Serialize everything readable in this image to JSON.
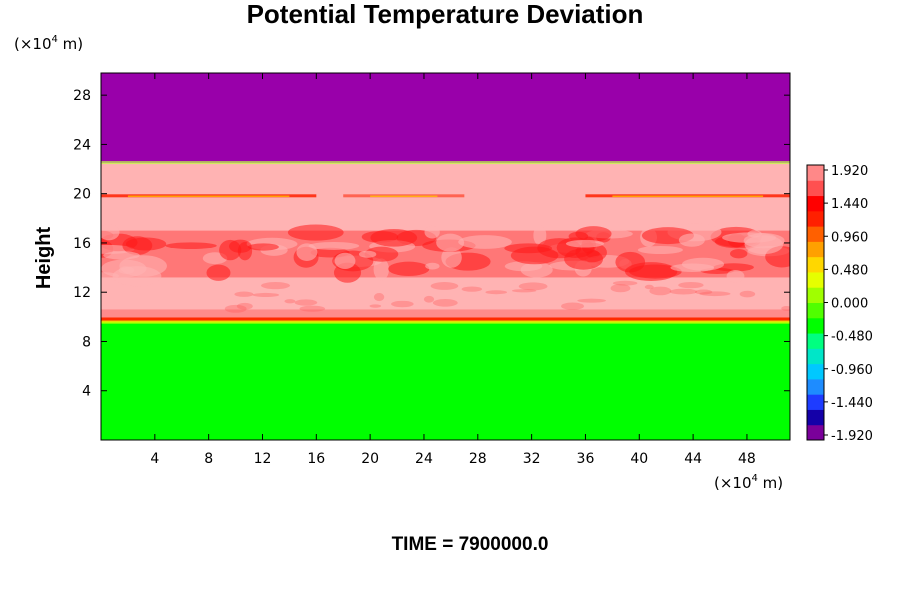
{
  "chart_data": {
    "type": "heatmap",
    "title": "Potential Temperature Deviation",
    "ylabel": "Height",
    "xlabel": "",
    "x_unit": {
      "prefix": "(×10",
      "exp": "4",
      "suffix": " m)"
    },
    "y_unit": {
      "prefix": "(×10",
      "exp": "4",
      "suffix": " m)"
    },
    "xlim": [
      0,
      51.2
    ],
    "ylim": [
      0,
      29.8
    ],
    "xticks": [
      4,
      8,
      12,
      16,
      20,
      24,
      28,
      32,
      36,
      40,
      44,
      48
    ],
    "yticks": [
      4,
      8,
      12,
      16,
      20,
      24,
      28
    ],
    "colorbar": {
      "min": -1.92,
      "max": 1.92,
      "ticks": [
        "1.920",
        "1.440",
        "0.960",
        "0.480",
        "0.000",
        "-0.480",
        "-0.960",
        "-1.440",
        "-1.920"
      ],
      "colors": [
        "#7a009a",
        "#1400a8",
        "#1e3cff",
        "#1e8cff",
        "#00c8ff",
        "#00e6c8",
        "#00ff80",
        "#00ff00",
        "#50ff00",
        "#a0ff00",
        "#e6ff00",
        "#ffd700",
        "#ffa000",
        "#ff6000",
        "#ff2000",
        "#ff0000",
        "#ff5050",
        "#ff8888"
      ]
    },
    "layers": [
      {
        "y0": 0,
        "y1": 9.6,
        "value": 0.0,
        "color": "#00ff00"
      },
      {
        "y0": 9.6,
        "y1": 22.5,
        "value": 1.9,
        "color": "#ffb3b3"
      },
      {
        "y0": 22.5,
        "y1": 29.8,
        "value": -1.92,
        "color": "#9900aa"
      }
    ],
    "time_label": "TIME = 7900000.0"
  }
}
